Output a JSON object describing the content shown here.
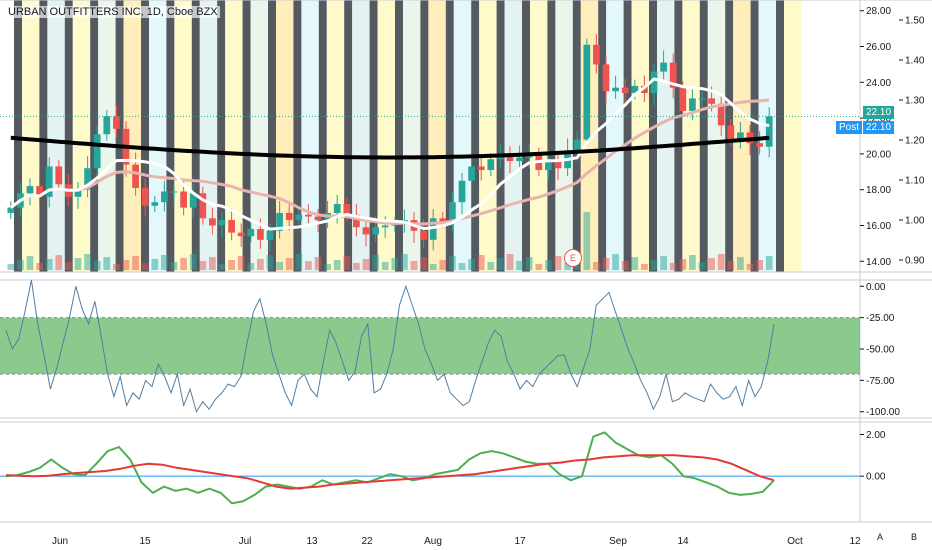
{
  "header": {
    "title": "URBAN OUTFITTERS INC, 1D, Cboe BZX"
  },
  "badges": {
    "last_price": "22.10",
    "post_label": "Post",
    "post_price": "22.10",
    "earnings": "E"
  },
  "buttons": {
    "a": "A",
    "b": "B"
  },
  "colors": {
    "up": "#26a69a",
    "down": "#ef5350",
    "grid": "#e0e3eb",
    "band": "#4caf50",
    "ma200": "#000000",
    "ma20": "#ffffff",
    "ma50": "#e8b4b0",
    "osc": "#4f7ea3",
    "signal": "#e53935",
    "macd": "#4caf50",
    "zero": "#2196f3"
  },
  "chart_data": [
    {
      "type": "candlestick",
      "title": "URBAN OUTFITTERS INC, 1D, Cboe BZX",
      "price_axis": {
        "ticks": [
          "28.00",
          "26.00",
          "24.00",
          "22.00",
          "20.00",
          "18.00",
          "16.00",
          "14.00"
        ],
        "ylim": [
          13.4,
          28.6
        ]
      },
      "ratio_axis": {
        "ticks": [
          "1.50",
          "1.40",
          "1.30",
          "1.20",
          "1.10",
          "1.00",
          "0.90"
        ]
      },
      "x_axis": {
        "labels": [
          "Jun",
          "15",
          "Jul",
          "13",
          "22",
          "Aug",
          "17",
          "Sep",
          "14",
          "Oct",
          "12"
        ]
      },
      "closes": [
        17.0,
        17.8,
        18.2,
        17.6,
        19.3,
        18.3,
        17.6,
        18.0,
        19.2,
        21.1,
        22.1,
        21.4,
        19.4,
        18.1,
        17.1,
        17.3,
        17.9,
        17.9,
        17.0,
        17.8,
        16.4,
        16.0,
        16.3,
        15.6,
        15.4,
        15.8,
        15.2,
        15.7,
        16.7,
        16.3,
        16.6,
        16.5,
        16.3,
        16.7,
        17.2,
        16.6,
        15.9,
        15.5,
        15.9,
        16.0,
        16.1,
        16.3,
        15.7,
        15.2,
        16.4,
        16.2,
        17.3,
        18.5,
        19.3,
        19.1,
        19.7,
        20.0,
        19.6,
        19.8,
        20.0,
        19.1,
        19.6,
        19.2,
        20.2,
        20.8,
        26.1,
        25.0,
        23.5,
        23.7,
        23.4,
        23.8,
        23.4,
        24.6,
        25.1,
        23.7,
        22.4,
        23.1,
        23.1,
        22.8,
        21.6,
        20.8,
        21.2,
        20.6,
        20.4,
        22.1
      ],
      "volume_note": "relative volume bars, earnings marker near late Aug",
      "series": [
        {
          "name": "MA 200",
          "color": "#000000"
        },
        {
          "name": "MA 20",
          "color": "#ffffff"
        },
        {
          "name": "MA 50",
          "color": "#e8b4b0"
        }
      ]
    },
    {
      "type": "line",
      "ylim": [
        -105,
        5
      ],
      "y_ticks": [
        "0.00",
        "-25.00",
        "-50.00",
        "-75.00",
        "-100.00"
      ],
      "band": [
        -25,
        -70
      ],
      "values": [
        -35,
        -50,
        -42,
        -20,
        5,
        -30,
        -55,
        -82,
        -65,
        -45,
        -25,
        0,
        -18,
        -30,
        -12,
        -40,
        -70,
        -88,
        -72,
        -95,
        -85,
        -90,
        -75,
        -80,
        -62,
        -72,
        -85,
        -70,
        -95,
        -82,
        -100,
        -92,
        -98,
        -90,
        -85,
        -78,
        -80,
        -72,
        -45,
        -20,
        -10,
        -30,
        -55,
        -70,
        -85,
        -95,
        -75,
        -70,
        -82,
        -88,
        -60,
        -35,
        -45,
        -60,
        -75,
        -68,
        -40,
        -30,
        -85,
        -82,
        -70,
        -50,
        -15,
        0,
        -15,
        -30,
        -50,
        -62,
        -75,
        -70,
        -85,
        -90,
        -95,
        -92,
        -75,
        -60,
        -45,
        -35,
        -40,
        -60,
        -70,
        -82,
        -75,
        -80,
        -70,
        -65,
        -60,
        -55,
        -55,
        -70,
        -80,
        -65,
        -50,
        -15,
        -10,
        -5,
        -20,
        -35,
        -50,
        -62,
        -75,
        -85,
        -98,
        -88,
        -70,
        -92,
        -90,
        -85,
        -88,
        -90,
        -92,
        -78,
        -85,
        -90,
        -88,
        -80,
        -95,
        -75,
        -88,
        -80,
        -60,
        -30
      ],
      "color": "#4f7ea3"
    },
    {
      "type": "line",
      "ylim": [
        -2.2,
        2.6
      ],
      "y_ticks": [
        "2.00",
        "0.00"
      ],
      "series": [
        {
          "values": [
            0.0,
            0.05,
            0.2,
            0.4,
            0.8,
            0.4,
            0.1,
            0.05,
            0.6,
            1.2,
            1.4,
            0.8,
            -0.3,
            -0.8,
            -0.5,
            -0.7,
            -0.6,
            -0.8,
            -0.6,
            -0.8,
            -1.3,
            -1.2,
            -0.9,
            -0.5,
            -0.4,
            -0.5,
            -0.6,
            -0.5,
            -0.2,
            -0.4,
            -0.3,
            -0.2,
            -0.3,
            -0.1,
            0.1,
            0.0,
            -0.2,
            -0.1,
            0.1,
            0.2,
            0.3,
            0.8,
            1.1,
            1.2,
            1.1,
            0.9,
            0.7,
            0.6,
            0.6,
            0.1,
            -0.2,
            0.0,
            1.9,
            2.1,
            1.6,
            1.3,
            1.0,
            0.9,
            1.0,
            0.6,
            0.0,
            -0.1,
            -0.3,
            -0.5,
            -0.8,
            -0.9,
            -0.85,
            -0.75,
            -0.2
          ],
          "color": "#4caf50"
        },
        {
          "values": [
            0.05,
            0.02,
            0.0,
            0.02,
            0.1,
            0.15,
            0.2,
            0.25,
            0.35,
            0.5,
            0.6,
            0.55,
            0.4,
            0.3,
            0.2,
            0.1,
            0.0,
            -0.1,
            -0.3,
            -0.5,
            -0.6,
            -0.55,
            -0.5,
            -0.4,
            -0.35,
            -0.3,
            -0.25,
            -0.2,
            -0.15,
            -0.1,
            -0.05,
            0.0,
            0.05,
            0.1,
            0.2,
            0.3,
            0.4,
            0.5,
            0.6,
            0.65,
            0.75,
            0.8,
            0.9,
            0.95,
            1.0,
            1.0,
            1.0,
            1.0,
            0.95,
            0.9,
            0.8,
            0.6,
            0.3,
            0.0,
            -0.2
          ],
          "color": "#e53935"
        }
      ],
      "zero_line": 0
    }
  ]
}
